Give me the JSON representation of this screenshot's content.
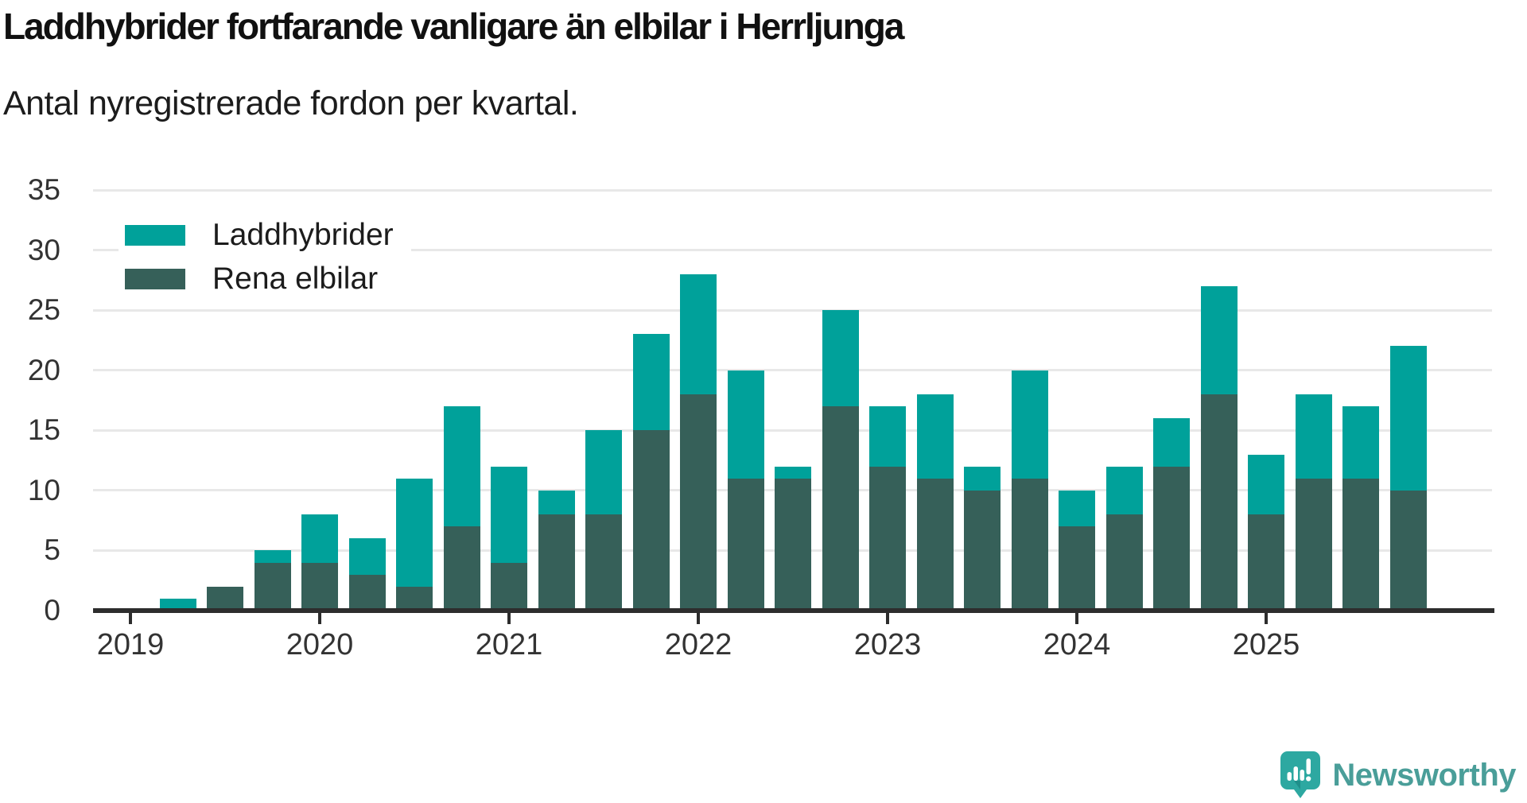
{
  "title": "Laddhybrider fortfarande vanligare än elbilar i Herrljunga",
  "subtitle": "Antal nyregistrerade fordon per kvartal.",
  "legend": {
    "items": [
      {
        "label": "Laddhybrider",
        "color": "#00a19a"
      },
      {
        "label": "Rena elbilar",
        "color": "#366059"
      }
    ]
  },
  "colors": {
    "laddhybrider": "#00a19a",
    "rena_elbilar": "#366059",
    "gridline": "#e8e8e8",
    "axis": "#2d2d2d",
    "tick_text": "#333333",
    "brand_teal": "#4a9e99",
    "logo_bubble": "#2da8a1"
  },
  "chart_data": {
    "type": "bar",
    "stacked": true,
    "categories": [
      "2019-Q1",
      "2019-Q2",
      "2019-Q3",
      "2019-Q4",
      "2020-Q1",
      "2020-Q2",
      "2020-Q3",
      "2020-Q4",
      "2021-Q1",
      "2021-Q2",
      "2021-Q3",
      "2021-Q4",
      "2022-Q1",
      "2022-Q2",
      "2022-Q3",
      "2022-Q4",
      "2023-Q1",
      "2023-Q2",
      "2023-Q3",
      "2023-Q4",
      "2024-Q1",
      "2024-Q2",
      "2024-Q3",
      "2024-Q4",
      "2025-Q1",
      "2025-Q2",
      "2025-Q3",
      "2025-Q4"
    ],
    "series": [
      {
        "name": "Rena elbilar",
        "color": "#366059",
        "stack_position": "bottom",
        "values": [
          0,
          0,
          2,
          4,
          4,
          3,
          2,
          7,
          4,
          8,
          8,
          15,
          18,
          11,
          11,
          17,
          12,
          11,
          10,
          11,
          7,
          8,
          12,
          18,
          8,
          11,
          11,
          10
        ]
      },
      {
        "name": "Laddhybrider",
        "color": "#00a19a",
        "stack_position": "top",
        "values": [
          0,
          1,
          0,
          1,
          4,
          3,
          9,
          10,
          8,
          2,
          7,
          8,
          10,
          9,
          1,
          8,
          5,
          7,
          2,
          9,
          3,
          4,
          4,
          9,
          5,
          7,
          6,
          12
        ]
      }
    ],
    "totals": [
      0,
      1,
      2,
      5,
      8,
      6,
      11,
      17,
      12,
      10,
      15,
      23,
      28,
      20,
      12,
      25,
      17,
      18,
      12,
      20,
      10,
      12,
      16,
      27,
      13,
      18,
      17,
      22
    ],
    "title": "Laddhybrider fortfarande vanligare än elbilar i Herrljunga",
    "subtitle": "Antal nyregistrerade fordon per kvartal.",
    "xlabel": "",
    "ylabel": "",
    "ylim": [
      0,
      35
    ],
    "yticks": [
      0,
      5,
      10,
      15,
      20,
      25,
      30,
      35
    ],
    "x_year_labels": [
      "2019",
      "2020",
      "2021",
      "2022",
      "2023",
      "2024",
      "2025"
    ],
    "grid": true,
    "legend_position": "top-left"
  },
  "branding": {
    "wordmark": "Newsworthy",
    "logo_icon": "newsworthy-speech-bubble-chart-icon",
    "color": "#4a9e99"
  }
}
